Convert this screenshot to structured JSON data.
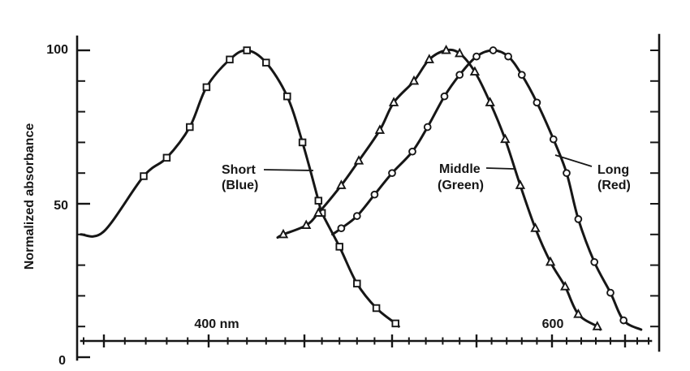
{
  "figure": {
    "background": "#ffffff",
    "ink_color": "#161616"
  },
  "y_axis": {
    "title": "Normalized absorbance",
    "tick_labels": [
      "100",
      "50",
      "0"
    ],
    "range": [
      0,
      100
    ],
    "minor_step": 10
  },
  "x_axis": {
    "unit": "nm",
    "label_400": "400 nm",
    "label_600": "600",
    "major_ticks_nm": [
      350,
      400,
      450,
      500,
      550,
      600,
      650
    ],
    "minor_per_interval": 4,
    "scale": "nonlinear (compressed toward long wavelengths)"
  },
  "annotations": [
    {
      "id": "short",
      "line1": "Short",
      "line2": "(Blue)"
    },
    {
      "id": "middle",
      "line1": "Middle",
      "line2": "(Green)"
    },
    {
      "id": "long",
      "line1": "Long",
      "line2": "(Red)"
    }
  ],
  "chart_data": {
    "type": "line",
    "title": "",
    "xlabel": "",
    "ylabel": "Normalized absorbance",
    "ylim": [
      0,
      100
    ],
    "x_unit": "nm",
    "grid": false,
    "legend": "inline-annotations",
    "series": [
      {
        "name": "Short (Blue)",
        "marker": "square",
        "points": [
          [
            369,
            59
          ],
          [
            380,
            65
          ],
          [
            391,
            75
          ],
          [
            399,
            88
          ],
          [
            411,
            97
          ],
          [
            420,
            100
          ],
          [
            430,
            96
          ],
          [
            441,
            85
          ],
          [
            449,
            70
          ],
          [
            458,
            51
          ],
          [
            460,
            47
          ],
          [
            470,
            36
          ],
          [
            480,
            24
          ],
          [
            491,
            16
          ],
          [
            502,
            11
          ]
        ],
        "line_start": [
          [
            339,
            40
          ],
          [
            350,
            41
          ]
        ],
        "line_end": [
          [
            504,
            10
          ]
        ]
      },
      {
        "name": "Middle (Green)",
        "marker": "triangle",
        "points": [
          [
            439,
            40
          ],
          [
            451,
            43
          ],
          [
            458,
            47
          ],
          [
            471,
            56
          ],
          [
            481,
            64
          ],
          [
            493,
            74
          ],
          [
            501,
            83
          ],
          [
            513,
            90
          ],
          [
            522,
            97
          ],
          [
            532,
            100
          ],
          [
            540,
            99
          ],
          [
            549,
            93
          ],
          [
            559,
            83
          ],
          [
            569,
            71
          ],
          [
            579,
            56
          ],
          [
            589,
            42
          ],
          [
            599,
            31
          ],
          [
            609,
            23
          ],
          [
            618,
            14
          ],
          [
            631,
            10
          ]
        ],
        "line_start": [
          [
            436,
            39
          ]
        ],
        "line_end": [
          [
            633,
            9
          ]
        ]
      },
      {
        "name": "Long (Red)",
        "marker": "circle",
        "points": [
          [
            471,
            42
          ],
          [
            480,
            46
          ],
          [
            490,
            53
          ],
          [
            500,
            60
          ],
          [
            512,
            67
          ],
          [
            521,
            75
          ],
          [
            531,
            85
          ],
          [
            540,
            92
          ],
          [
            550,
            98
          ],
          [
            561,
            100
          ],
          [
            571,
            98
          ],
          [
            580,
            92
          ],
          [
            590,
            83
          ],
          [
            601,
            71
          ],
          [
            610,
            60
          ],
          [
            618,
            45
          ],
          [
            629,
            31
          ],
          [
            640,
            21
          ],
          [
            649,
            12
          ]
        ],
        "line_start": [
          [
            466,
            40
          ]
        ],
        "line_end": [
          [
            661,
            9
          ]
        ]
      }
    ]
  }
}
